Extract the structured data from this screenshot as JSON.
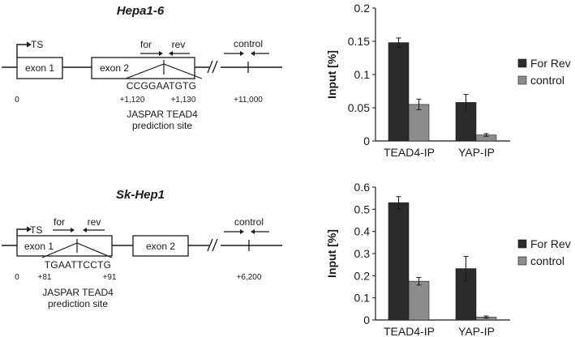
{
  "colors": {
    "for_rev": "#2b2b2b",
    "control": "#8c8c8c",
    "line": "#1a1a1a"
  },
  "top_gene": {
    "title": "Hepa1-6",
    "ts_label": "TS",
    "exon1_label": "exon 1",
    "exon2_label": "exon 2",
    "for_label": "for",
    "rev_label": "rev",
    "control_label": "control",
    "sequence": "CCGGAATGTG",
    "coord_0": "0",
    "coord_start": "+1,120",
    "coord_end": "+1,130",
    "coord_control": "+11,000",
    "site_line1": "JASPAR TEAD4",
    "site_line2": "prediction site"
  },
  "bottom_gene": {
    "title": "Sk-Hep1",
    "ts_label": "TS",
    "exon1_label": "exon 1",
    "exon2_label": "exon 2",
    "for_label": "for",
    "rev_label": "rev",
    "control_label": "control",
    "sequence": "TGAATTCCTG",
    "coord_0": "0",
    "coord_start": "+81",
    "coord_end": "+91",
    "coord_control": "+6,200",
    "site_line1": "JASPAR TEAD4",
    "site_line2": "prediction site"
  },
  "chart_data": [
    {
      "type": "bar",
      "ylabel": "Input [%]",
      "categories": [
        "TEAD4-IP",
        "YAP-IP"
      ],
      "ylim": [
        0,
        0.2
      ],
      "yticks": [
        "0",
        "0.05",
        "0.1",
        "0.15",
        "0.2"
      ],
      "ytick_values": [
        0,
        0.05,
        0.1,
        0.15,
        0.2
      ],
      "legend_position": "right",
      "series": [
        {
          "name": "For Rev",
          "values": [
            0.148,
            0.058
          ],
          "errors": [
            0.007,
            0.012
          ]
        },
        {
          "name": "control",
          "values": [
            0.055,
            0.009
          ],
          "errors": [
            0.008,
            0.002
          ]
        }
      ]
    },
    {
      "type": "bar",
      "ylabel": "Input [%]",
      "categories": [
        "TEAD4-IP",
        "YAP-IP"
      ],
      "ylim": [
        0,
        0.6
      ],
      "yticks": [
        "0",
        "0.1",
        "0.2",
        "0.3",
        "0.4",
        "0.5",
        "0.6"
      ],
      "ytick_values": [
        0,
        0.1,
        0.2,
        0.3,
        0.4,
        0.5,
        0.6
      ],
      "legend_position": "right",
      "series": [
        {
          "name": "For Rev",
          "values": [
            0.53,
            0.232
          ],
          "errors": [
            0.027,
            0.055
          ]
        },
        {
          "name": "control",
          "values": [
            0.175,
            0.013
          ],
          "errors": [
            0.017,
            0.005
          ]
        }
      ]
    }
  ]
}
